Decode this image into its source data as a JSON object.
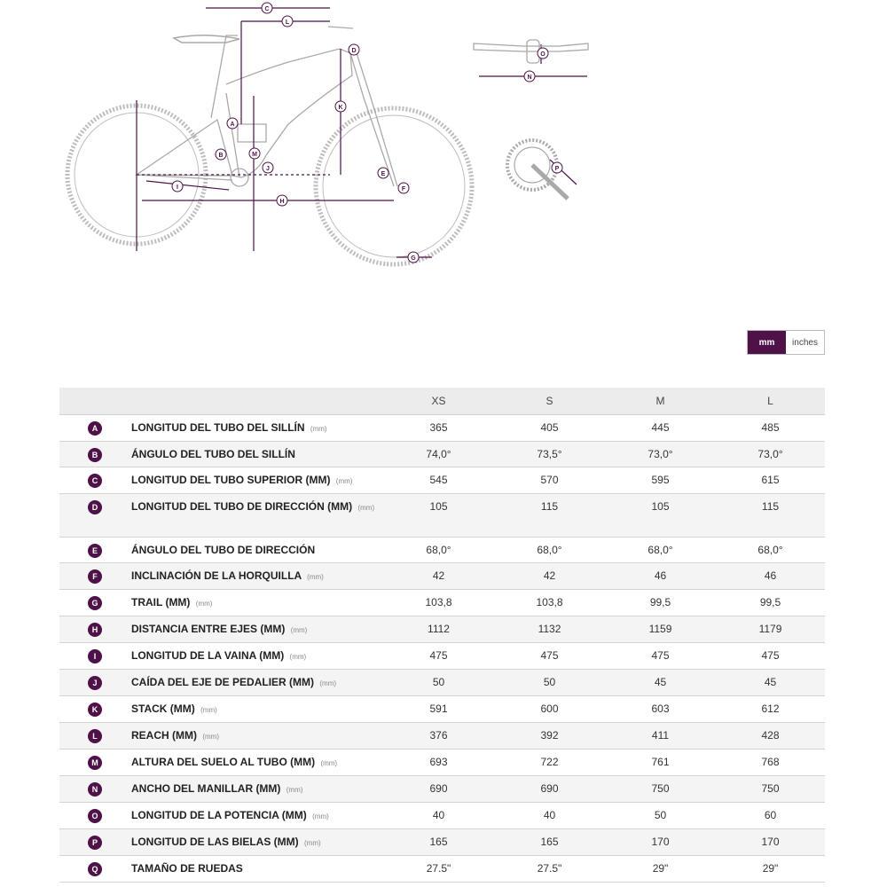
{
  "colors": {
    "accent": "#4e1148",
    "bike_line": "#b5b5b5"
  },
  "diagram": {
    "labels": [
      "A",
      "B",
      "C",
      "D",
      "E",
      "F",
      "G",
      "H",
      "I",
      "J",
      "K",
      "L",
      "M",
      "N",
      "O",
      "P"
    ]
  },
  "units": {
    "mm": "mm",
    "inches": "inches",
    "selected": "mm"
  },
  "table": {
    "columns": [
      "XS",
      "S",
      "M",
      "L"
    ],
    "rows": [
      {
        "letter": "A",
        "label": "LONGITUD DEL TUBO DEL SILLÍN",
        "unit": "(mm)",
        "values": [
          "365",
          "405",
          "445",
          "485"
        ]
      },
      {
        "letter": "B",
        "label": "ÁNGULO DEL TUBO DEL SILLÍN",
        "unit": "",
        "values": [
          "74,0°",
          "73,5°",
          "73,0°",
          "73,0°"
        ]
      },
      {
        "letter": "C",
        "label": "LONGITUD DEL TUBO SUPERIOR (MM)",
        "unit": "(mm)",
        "values": [
          "545",
          "570",
          "595",
          "615"
        ]
      },
      {
        "letter": "D",
        "label": "LONGITUD DEL TUBO DE DIRECCIÓN (MM)",
        "unit": "(mm)",
        "values": [
          "105",
          "115",
          "105",
          "115"
        ]
      },
      {
        "letter": "E",
        "label": "ÁNGULO DEL TUBO DE DIRECCIÓN",
        "unit": "",
        "values": [
          "68,0°",
          "68,0°",
          "68,0°",
          "68,0°"
        ]
      },
      {
        "letter": "F",
        "label": "INCLINACIÓN DE LA HORQUILLA",
        "unit": "(mm)",
        "values": [
          "42",
          "42",
          "46",
          "46"
        ]
      },
      {
        "letter": "G",
        "label": "TRAIL (MM)",
        "unit": "(mm)",
        "values": [
          "103,8",
          "103,8",
          "99,5",
          "99,5"
        ]
      },
      {
        "letter": "H",
        "label": "DISTANCIA ENTRE EJES (MM)",
        "unit": "(mm)",
        "values": [
          "1112",
          "1132",
          "1159",
          "1179"
        ]
      },
      {
        "letter": "I",
        "label": "LONGITUD DE LA VAINA (MM)",
        "unit": "(mm)",
        "values": [
          "475",
          "475",
          "475",
          "475"
        ]
      },
      {
        "letter": "J",
        "label": "CAÍDA DEL EJE DE PEDALIER (MM)",
        "unit": "(mm)",
        "values": [
          "50",
          "50",
          "45",
          "45"
        ]
      },
      {
        "letter": "K",
        "label": "STACK (MM)",
        "unit": "(mm)",
        "values": [
          "591",
          "600",
          "603",
          "612"
        ]
      },
      {
        "letter": "L",
        "label": "REACH (MM)",
        "unit": "(mm)",
        "values": [
          "376",
          "392",
          "411",
          "428"
        ]
      },
      {
        "letter": "M",
        "label": "ALTURA DEL SUELO AL TUBO (MM)",
        "unit": "(mm)",
        "values": [
          "693",
          "722",
          "761",
          "768"
        ]
      },
      {
        "letter": "N",
        "label": "ANCHO DEL MANILLAR (MM)",
        "unit": "(mm)",
        "values": [
          "690",
          "690",
          "750",
          "750"
        ]
      },
      {
        "letter": "O",
        "label": "LONGITUD DE LA POTENCIA (MM)",
        "unit": "(mm)",
        "values": [
          "40",
          "40",
          "50",
          "60"
        ]
      },
      {
        "letter": "P",
        "label": "LONGITUD DE LAS BIELAS (MM)",
        "unit": "(mm)",
        "values": [
          "165",
          "165",
          "170",
          "170"
        ]
      },
      {
        "letter": "Q",
        "label": "TAMAÑO DE RUEDAS",
        "unit": "",
        "values": [
          "27.5\"",
          "27.5\"",
          "29\"",
          "29\""
        ]
      }
    ]
  }
}
